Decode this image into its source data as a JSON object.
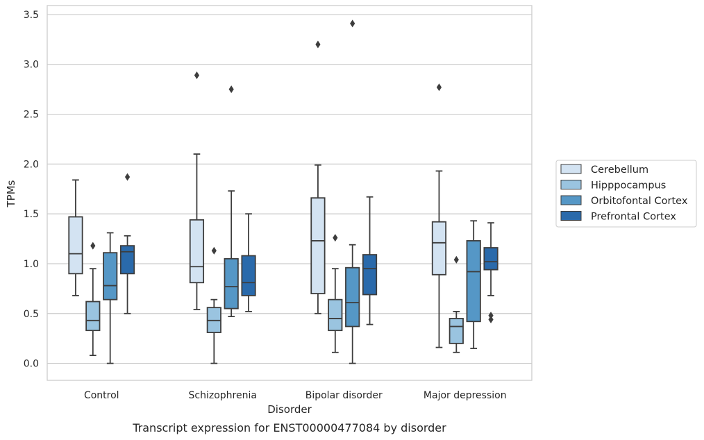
{
  "chart_data": {
    "type": "box",
    "title": "",
    "caption": "Transcript expression for ENST00000477084 by disorder",
    "xlabel": "Disorder",
    "ylabel": "TPMs",
    "ylim": [
      -0.17,
      3.59
    ],
    "yticks": [
      "0.0",
      "0.5",
      "1.0",
      "1.5",
      "2.0",
      "2.5",
      "3.0",
      "3.5"
    ],
    "grid": "horizontal",
    "legend_position": "right",
    "categories": [
      "Control",
      "Schizophrenia",
      "Bipolar disorder",
      "Major depression"
    ],
    "series": [
      {
        "name": "Cerebellum",
        "color": "#d3e3f2",
        "boxes": [
          {
            "whislo": 0.68,
            "q1": 0.9,
            "med": 1.1,
            "q3": 1.47,
            "whishi": 1.84,
            "fliers": []
          },
          {
            "whislo": 0.54,
            "q1": 0.81,
            "med": 0.97,
            "q3": 1.44,
            "whishi": 2.1,
            "fliers": [
              2.89
            ]
          },
          {
            "whislo": 0.5,
            "q1": 0.7,
            "med": 1.23,
            "q3": 1.66,
            "whishi": 1.99,
            "fliers": [
              3.2
            ]
          },
          {
            "whislo": 0.16,
            "q1": 0.89,
            "med": 1.21,
            "q3": 1.42,
            "whishi": 1.93,
            "fliers": [
              2.77
            ]
          }
        ]
      },
      {
        "name": "Hipppocampus",
        "color": "#9ac4e0",
        "boxes": [
          {
            "whislo": 0.08,
            "q1": 0.33,
            "med": 0.43,
            "q3": 0.62,
            "whishi": 0.95,
            "fliers": [
              1.18
            ]
          },
          {
            "whislo": 0.0,
            "q1": 0.31,
            "med": 0.43,
            "q3": 0.56,
            "whishi": 0.64,
            "fliers": [
              1.13
            ]
          },
          {
            "whislo": 0.11,
            "q1": 0.33,
            "med": 0.45,
            "q3": 0.64,
            "whishi": 0.95,
            "fliers": [
              1.26
            ]
          },
          {
            "whislo": 0.11,
            "q1": 0.2,
            "med": 0.37,
            "q3": 0.45,
            "whishi": 0.52,
            "fliers": [
              1.04
            ]
          }
        ]
      },
      {
        "name": "Orbitofontal Cortex",
        "color": "#5597c6",
        "boxes": [
          {
            "whislo": 0.0,
            "q1": 0.64,
            "med": 0.78,
            "q3": 1.11,
            "whishi": 1.31,
            "fliers": []
          },
          {
            "whislo": 0.47,
            "q1": 0.55,
            "med": 0.77,
            "q3": 1.05,
            "whishi": 1.73,
            "fliers": [
              2.75
            ]
          },
          {
            "whislo": 0.0,
            "q1": 0.37,
            "med": 0.61,
            "q3": 0.96,
            "whishi": 1.19,
            "fliers": [
              3.41
            ]
          },
          {
            "whislo": 0.15,
            "q1": 0.42,
            "med": 0.92,
            "q3": 1.23,
            "whishi": 1.43,
            "fliers": []
          }
        ]
      },
      {
        "name": "Prefrontal Cortex",
        "color": "#2a6aab",
        "boxes": [
          {
            "whislo": 0.5,
            "q1": 0.9,
            "med": 1.12,
            "q3": 1.18,
            "whishi": 1.28,
            "fliers": [
              1.87
            ]
          },
          {
            "whislo": 0.52,
            "q1": 0.68,
            "med": 0.81,
            "q3": 1.08,
            "whishi": 1.5,
            "fliers": []
          },
          {
            "whislo": 0.39,
            "q1": 0.69,
            "med": 0.95,
            "q3": 1.09,
            "whishi": 1.67,
            "fliers": []
          },
          {
            "whislo": 0.68,
            "q1": 0.94,
            "med": 1.02,
            "q3": 1.16,
            "whishi": 1.41,
            "fliers": [
              0.48,
              0.44
            ]
          }
        ]
      }
    ]
  }
}
